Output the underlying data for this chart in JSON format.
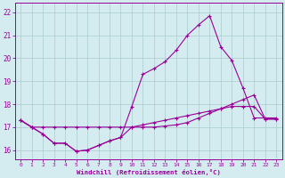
{
  "xlabel": "Windchill (Refroidissement éolien,°C)",
  "bg_color": "#d4ecf0",
  "line_color": "#990099",
  "grid_color": "#aacccc",
  "xlim": [
    -0.5,
    23.5
  ],
  "ylim": [
    15.6,
    22.4
  ],
  "xticks": [
    0,
    1,
    2,
    3,
    4,
    5,
    6,
    7,
    8,
    9,
    10,
    11,
    12,
    13,
    14,
    15,
    16,
    17,
    18,
    19,
    20,
    21,
    22,
    23
  ],
  "yticks": [
    16,
    17,
    18,
    19,
    20,
    21,
    22
  ],
  "line_flat_x": [
    0,
    1,
    2,
    3,
    4,
    5,
    6,
    7,
    8,
    9,
    10,
    11,
    12,
    13,
    14,
    15,
    16,
    17,
    18,
    19,
    20,
    21,
    22,
    23
  ],
  "line_flat_y": [
    17.3,
    17.0,
    17.0,
    17.0,
    17.0,
    17.0,
    17.0,
    17.0,
    17.0,
    17.0,
    17.0,
    17.1,
    17.2,
    17.3,
    17.4,
    17.5,
    17.6,
    17.7,
    17.8,
    17.9,
    17.9,
    17.9,
    17.35,
    17.35
  ],
  "line_low_x": [
    0,
    1,
    2,
    3,
    4,
    5,
    6,
    7,
    8,
    9,
    10,
    11,
    12,
    13,
    14,
    15,
    16,
    17,
    18,
    19,
    20,
    21,
    22,
    23
  ],
  "line_low_y": [
    17.3,
    17.0,
    16.7,
    16.3,
    16.3,
    15.95,
    16.0,
    16.2,
    16.4,
    16.55,
    17.0,
    17.0,
    17.0,
    17.05,
    17.1,
    17.2,
    17.4,
    17.6,
    17.8,
    18.0,
    18.2,
    18.4,
    17.35,
    17.35
  ],
  "line_hi_x": [
    0,
    1,
    2,
    3,
    4,
    5,
    6,
    7,
    8,
    9,
    10,
    11,
    12,
    13,
    14,
    15,
    16,
    17,
    18,
    19,
    20,
    21,
    22,
    23
  ],
  "line_hi_y": [
    17.3,
    17.0,
    16.7,
    16.3,
    16.3,
    15.95,
    16.0,
    16.2,
    16.4,
    16.55,
    17.9,
    19.3,
    19.55,
    19.85,
    20.35,
    21.0,
    21.45,
    21.85,
    20.5,
    19.9,
    18.7,
    17.4,
    17.4,
    17.4
  ]
}
